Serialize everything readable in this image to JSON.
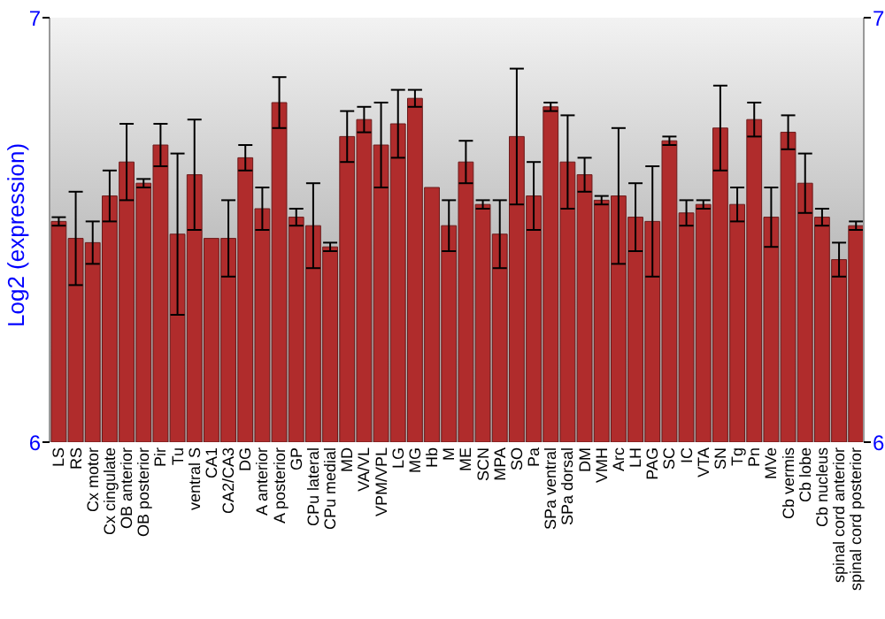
{
  "chart_data": {
    "type": "bar",
    "ylabel": "Log2 (expression)",
    "categories": [
      "LS",
      "RS",
      "Cx motor",
      "Cx cingulate",
      "OB anterior",
      "OB posterior",
      "Pir",
      "Tu",
      "ventral S",
      "CA1",
      "CA2/CA3",
      "DG",
      "A anterior",
      "A posterior",
      "GP",
      "CPu lateral",
      "CPu medial",
      "MD",
      "VA/VL",
      "VPM/VPL",
      "LG",
      "MG",
      "Hb",
      "M",
      "ME",
      "SCN",
      "MPA",
      "SO",
      "Pa",
      "SPa ventral",
      "SPa dorsal",
      "DM",
      "VMH",
      "Arc",
      "LH",
      "PAG",
      "SC",
      "IC",
      "VTA",
      "SN",
      "Tg",
      "Pn",
      "MVe",
      "Cb vermis",
      "Cb lobe",
      "Cb nucleus",
      "spinal cord anterior",
      "spinal cord posterior"
    ],
    "series": [
      {
        "color": "#b02c2c",
        "values": [
          6.52,
          6.48,
          6.47,
          6.58,
          6.66,
          6.61,
          6.7,
          6.49,
          6.63,
          6.48,
          6.48,
          6.67,
          6.55,
          6.8,
          6.53,
          6.51,
          6.46,
          6.72,
          6.76,
          6.7,
          6.75,
          6.81,
          6.6,
          6.51,
          6.66,
          6.56,
          6.49,
          6.72,
          6.58,
          6.79,
          6.66,
          6.63,
          6.57,
          6.58,
          6.53,
          6.52,
          6.71,
          6.54,
          6.56,
          6.74,
          6.56,
          6.76,
          6.53,
          6.73,
          6.61,
          6.53,
          6.43,
          6.51
        ],
        "errors": [
          0.01,
          0.11,
          0.05,
          0.06,
          0.09,
          0.01,
          0.05,
          0.19,
          0.13,
          null,
          0.09,
          0.03,
          0.05,
          0.06,
          0.02,
          0.1,
          0.01,
          0.06,
          0.03,
          0.1,
          0.08,
          0.02,
          null,
          0.06,
          0.05,
          0.01,
          0.08,
          0.16,
          0.08,
          0.01,
          0.11,
          0.04,
          0.01,
          0.16,
          0.08,
          0.13,
          0.01,
          0.03,
          0.01,
          0.1,
          0.04,
          0.04,
          0.07,
          0.04,
          0.07,
          0.02,
          0.04,
          0.01
        ]
      }
    ],
    "ylim": [
      6,
      7
    ],
    "yticks": [
      6,
      7
    ],
    "y2lim": [
      6,
      7
    ],
    "y2ticks": [
      6,
      7
    ],
    "grid": false
  }
}
